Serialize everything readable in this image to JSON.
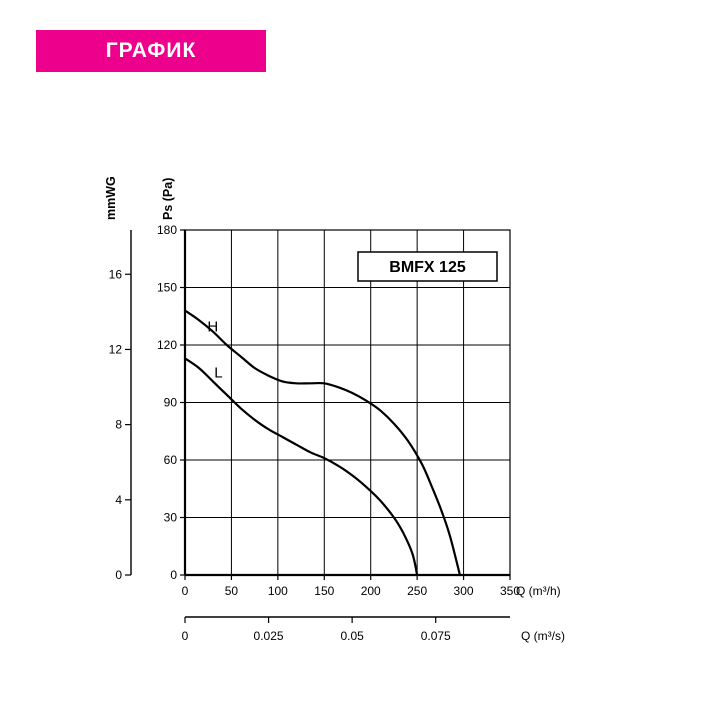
{
  "page": {
    "banner": {
      "label": "ГРАФИК",
      "bg_color": "#EC008C",
      "text_color": "#FFFFFF"
    }
  },
  "chart_data": {
    "type": "line",
    "title": "BMFX 125",
    "grid": true,
    "legend_position": "on-curve",
    "x_axis_primary": {
      "label": "Q (m³/h)",
      "min": 0,
      "max": 350,
      "ticks": [
        0,
        50,
        100,
        150,
        200,
        250,
        300,
        350
      ]
    },
    "x_axis_secondary": {
      "label": "Q (m³/s)",
      "tick_labels": [
        "0",
        "0.025",
        "0.05",
        "0.075"
      ],
      "tick_positions_in_m3h": [
        0,
        90,
        180,
        270
      ]
    },
    "y_axis_primary": {
      "label": "Ps (Pa)",
      "min": 0,
      "max": 180,
      "ticks": [
        0,
        30,
        60,
        90,
        120,
        150,
        180
      ]
    },
    "y_axis_secondary": {
      "label": "mmWG",
      "ticks": [
        0,
        4,
        8,
        12,
        16
      ],
      "pa_per_unit": 9.80665
    },
    "series": [
      {
        "name": "H",
        "label_at": {
          "q": 30,
          "pa": 127
        },
        "points": [
          [
            0,
            138
          ],
          [
            15,
            133
          ],
          [
            30,
            127
          ],
          [
            45,
            120
          ],
          [
            60,
            114
          ],
          [
            75,
            108
          ],
          [
            90,
            104
          ],
          [
            105,
            101
          ],
          [
            120,
            100
          ],
          [
            135,
            100
          ],
          [
            150,
            100
          ],
          [
            165,
            98
          ],
          [
            180,
            95
          ],
          [
            195,
            91
          ],
          [
            210,
            86
          ],
          [
            225,
            79
          ],
          [
            240,
            70
          ],
          [
            255,
            58
          ],
          [
            265,
            47
          ],
          [
            275,
            35
          ],
          [
            285,
            21
          ],
          [
            296,
            0
          ]
        ]
      },
      {
        "name": "L",
        "label_at": {
          "q": 36,
          "pa": 103
        },
        "points": [
          [
            0,
            113
          ],
          [
            15,
            108
          ],
          [
            30,
            101
          ],
          [
            45,
            94
          ],
          [
            60,
            87
          ],
          [
            75,
            81
          ],
          [
            90,
            76
          ],
          [
            105,
            72
          ],
          [
            120,
            68
          ],
          [
            135,
            64
          ],
          [
            150,
            61
          ],
          [
            165,
            57
          ],
          [
            180,
            52
          ],
          [
            195,
            46
          ],
          [
            210,
            39
          ],
          [
            225,
            30
          ],
          [
            235,
            22
          ],
          [
            245,
            11
          ],
          [
            250,
            0
          ]
        ]
      }
    ]
  }
}
